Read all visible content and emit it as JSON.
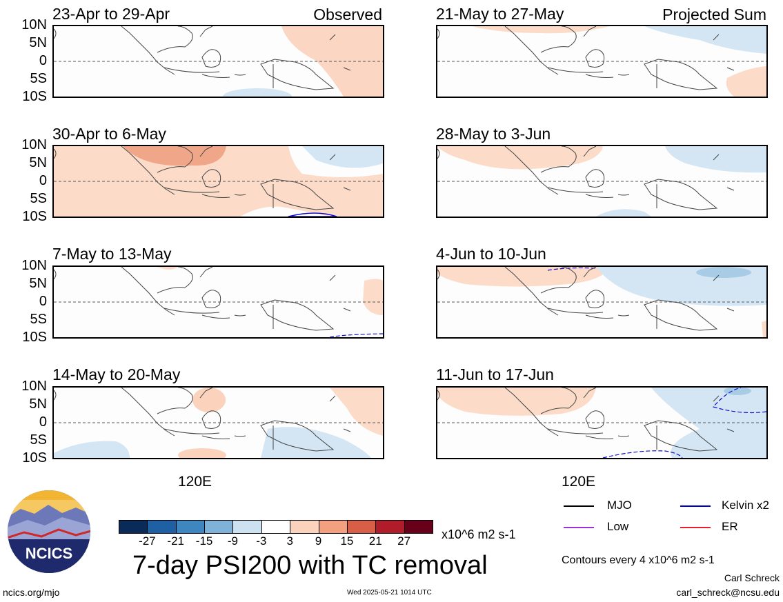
{
  "panels": [
    {
      "title": "23-Apr to 29-Apr",
      "kind": "Observed"
    },
    {
      "title": "30-Apr to 6-May",
      "kind": ""
    },
    {
      "title": "7-May to 13-May",
      "kind": ""
    },
    {
      "title": "14-May to 20-May",
      "kind": ""
    },
    {
      "title": "21-May to 27-May",
      "kind": "Projected Sum"
    },
    {
      "title": "28-May to 3-Jun",
      "kind": ""
    },
    {
      "title": "4-Jun to 10-Jun",
      "kind": ""
    },
    {
      "title": "11-Jun to 17-Jun",
      "kind": ""
    }
  ],
  "lat_labels": [
    "10N",
    "5N",
    "0",
    "5S",
    "10S"
  ],
  "lon_label": "120E",
  "colorbar": {
    "labels": [
      "-27",
      "-21",
      "-15",
      "-9",
      "-3",
      "3",
      "9",
      "15",
      "21",
      "27"
    ],
    "units": "x10^6 m2 s-1",
    "colors": [
      "#0a2a5a",
      "#1f5fa3",
      "#3d86c0",
      "#7fb2d8",
      "#cde2f0",
      "#ffffff",
      "#fbd2bc",
      "#f3a081",
      "#d95e48",
      "#b01c2a",
      "#68001a"
    ]
  },
  "main_title": "7-day PSI200 with TC removal",
  "legend": {
    "items": [
      {
        "label": "MJO",
        "color": "#000000"
      },
      {
        "label": "Kelvin x2",
        "color": "#0000cc"
      },
      {
        "label": "Low",
        "color": "#9b30d9"
      },
      {
        "label": "ER",
        "color": "#e0202a"
      }
    ],
    "contours_note": "Contours every 4 x10^6 m2 s-1"
  },
  "credits": {
    "name": "Carl Schreck",
    "email": "carl_schreck@ncsu.edu"
  },
  "footer": {
    "url": "ncics.org/mjo",
    "timestamp": "Wed 2025-05-21 1014 UTC"
  },
  "logo": {
    "text": "NCICS"
  }
}
